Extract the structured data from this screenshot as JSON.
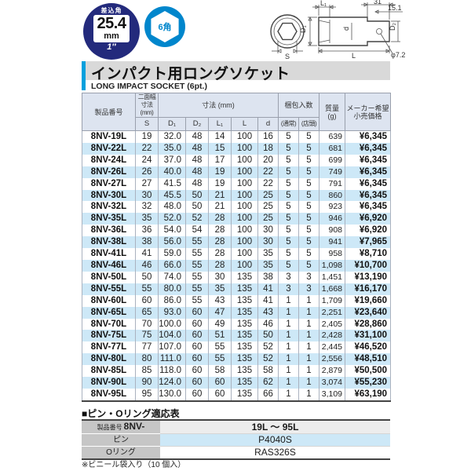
{
  "badges": {
    "drive_label": "差込角",
    "drive_size": "25.4",
    "drive_unit": "mm",
    "drive_inch": "1″",
    "point_label": "6角"
  },
  "diagram_labels": {
    "l1": "L₁",
    "w31": "31",
    "w151": "15.1",
    "d1": "D₁",
    "d": "d",
    "d2": "D₂",
    "s": "S",
    "l": "L",
    "phi": "φ7.2"
  },
  "title": {
    "jp": "インパクト用ロングソケット",
    "en": "LONG IMPACT SOCKET (6pt.)"
  },
  "table": {
    "headers": {
      "product": "製品番号",
      "flats": "二面幅\n寸法\n(mm)",
      "flats_sub": "S",
      "dims": "寸法 (mm)",
      "dim_subs": [
        "D₁",
        "D₂",
        "L₁",
        "L",
        "d"
      ],
      "packing": "梱包入数",
      "packing_subs": [
        "(通常)",
        "(店頭)"
      ],
      "weight": "質量\n(g)",
      "price": "メーカー希望\n小売価格"
    },
    "rows": [
      [
        "8NV-19L",
        "19",
        "32.0",
        "48",
        "14",
        "100",
        "16",
        "5",
        "5",
        "639",
        "¥6,345"
      ],
      [
        "8NV-22L",
        "22",
        "35.0",
        "48",
        "15",
        "100",
        "18",
        "5",
        "5",
        "681",
        "¥6,345"
      ],
      [
        "8NV-24L",
        "24",
        "37.0",
        "48",
        "17",
        "100",
        "20",
        "5",
        "5",
        "699",
        "¥6,345"
      ],
      [
        "8NV-26L",
        "26",
        "40.0",
        "48",
        "19",
        "100",
        "22",
        "5",
        "5",
        "749",
        "¥6,345"
      ],
      [
        "8NV-27L",
        "27",
        "41.5",
        "48",
        "19",
        "100",
        "22",
        "5",
        "5",
        "791",
        "¥6,345"
      ],
      [
        "8NV-30L",
        "30",
        "45.5",
        "50",
        "21",
        "100",
        "25",
        "5",
        "5",
        "860",
        "¥6,345"
      ],
      [
        "8NV-32L",
        "32",
        "48.0",
        "50",
        "21",
        "100",
        "25",
        "5",
        "5",
        "923",
        "¥6,345"
      ],
      [
        "8NV-35L",
        "35",
        "52.0",
        "52",
        "28",
        "100",
        "25",
        "5",
        "5",
        "946",
        "¥6,920"
      ],
      [
        "8NV-36L",
        "36",
        "54.0",
        "54",
        "28",
        "100",
        "30",
        "5",
        "5",
        "908",
        "¥6,920"
      ],
      [
        "8NV-38L",
        "38",
        "56.0",
        "55",
        "28",
        "100",
        "30",
        "5",
        "5",
        "941",
        "¥7,965"
      ],
      [
        "8NV-41L",
        "41",
        "59.0",
        "55",
        "28",
        "100",
        "35",
        "5",
        "5",
        "958",
        "¥8,710"
      ],
      [
        "8NV-46L",
        "46",
        "66.0",
        "55",
        "28",
        "100",
        "35",
        "5",
        "5",
        "1,098",
        "¥10,700"
      ],
      [
        "8NV-50L",
        "50",
        "74.0",
        "55",
        "30",
        "135",
        "38",
        "3",
        "3",
        "1,451",
        "¥13,190"
      ],
      [
        "8NV-55L",
        "55",
        "80.0",
        "55",
        "35",
        "135",
        "41",
        "3",
        "3",
        "1,668",
        "¥16,170"
      ],
      [
        "8NV-60L",
        "60",
        "86.0",
        "55",
        "43",
        "135",
        "41",
        "1",
        "1",
        "1,709",
        "¥19,660"
      ],
      [
        "8NV-65L",
        "65",
        "93.0",
        "60",
        "47",
        "135",
        "43",
        "1",
        "1",
        "2,251",
        "¥23,640"
      ],
      [
        "8NV-70L",
        "70",
        "100.0",
        "60",
        "49",
        "135",
        "46",
        "1",
        "1",
        "2,405",
        "¥28,860"
      ],
      [
        "8NV-75L",
        "75",
        "104.0",
        "60",
        "51",
        "135",
        "50",
        "1",
        "1",
        "2,428",
        "¥31,100"
      ],
      [
        "8NV-77L",
        "77",
        "107.0",
        "60",
        "55",
        "135",
        "52",
        "1",
        "1",
        "2,445",
        "¥46,520"
      ],
      [
        "8NV-80L",
        "80",
        "111.0",
        "60",
        "55",
        "135",
        "52",
        "1",
        "1",
        "2,556",
        "¥48,510"
      ],
      [
        "8NV-85L",
        "85",
        "118.0",
        "60",
        "58",
        "135",
        "58",
        "1",
        "1",
        "2,879",
        "¥50,500"
      ],
      [
        "8NV-90L",
        "90",
        "124.0",
        "60",
        "60",
        "135",
        "62",
        "1",
        "1",
        "3,074",
        "¥55,230"
      ],
      [
        "8NV-95L",
        "95",
        "130.0",
        "60",
        "60",
        "135",
        "66",
        "1",
        "1",
        "3,109",
        "¥63,190"
      ]
    ]
  },
  "compat": {
    "section_title": "■ピン・Oリング適応表",
    "product_label": "製品番号",
    "product_prefix": "8NV-",
    "rows": [
      {
        "label": "",
        "value": "19L ～ 95L"
      },
      {
        "label": "ピン",
        "value": "P4040S"
      },
      {
        "label": "Oリング",
        "value": "RAS326S"
      }
    ]
  },
  "footnote": "※ビニール袋入り（10 個入）"
}
